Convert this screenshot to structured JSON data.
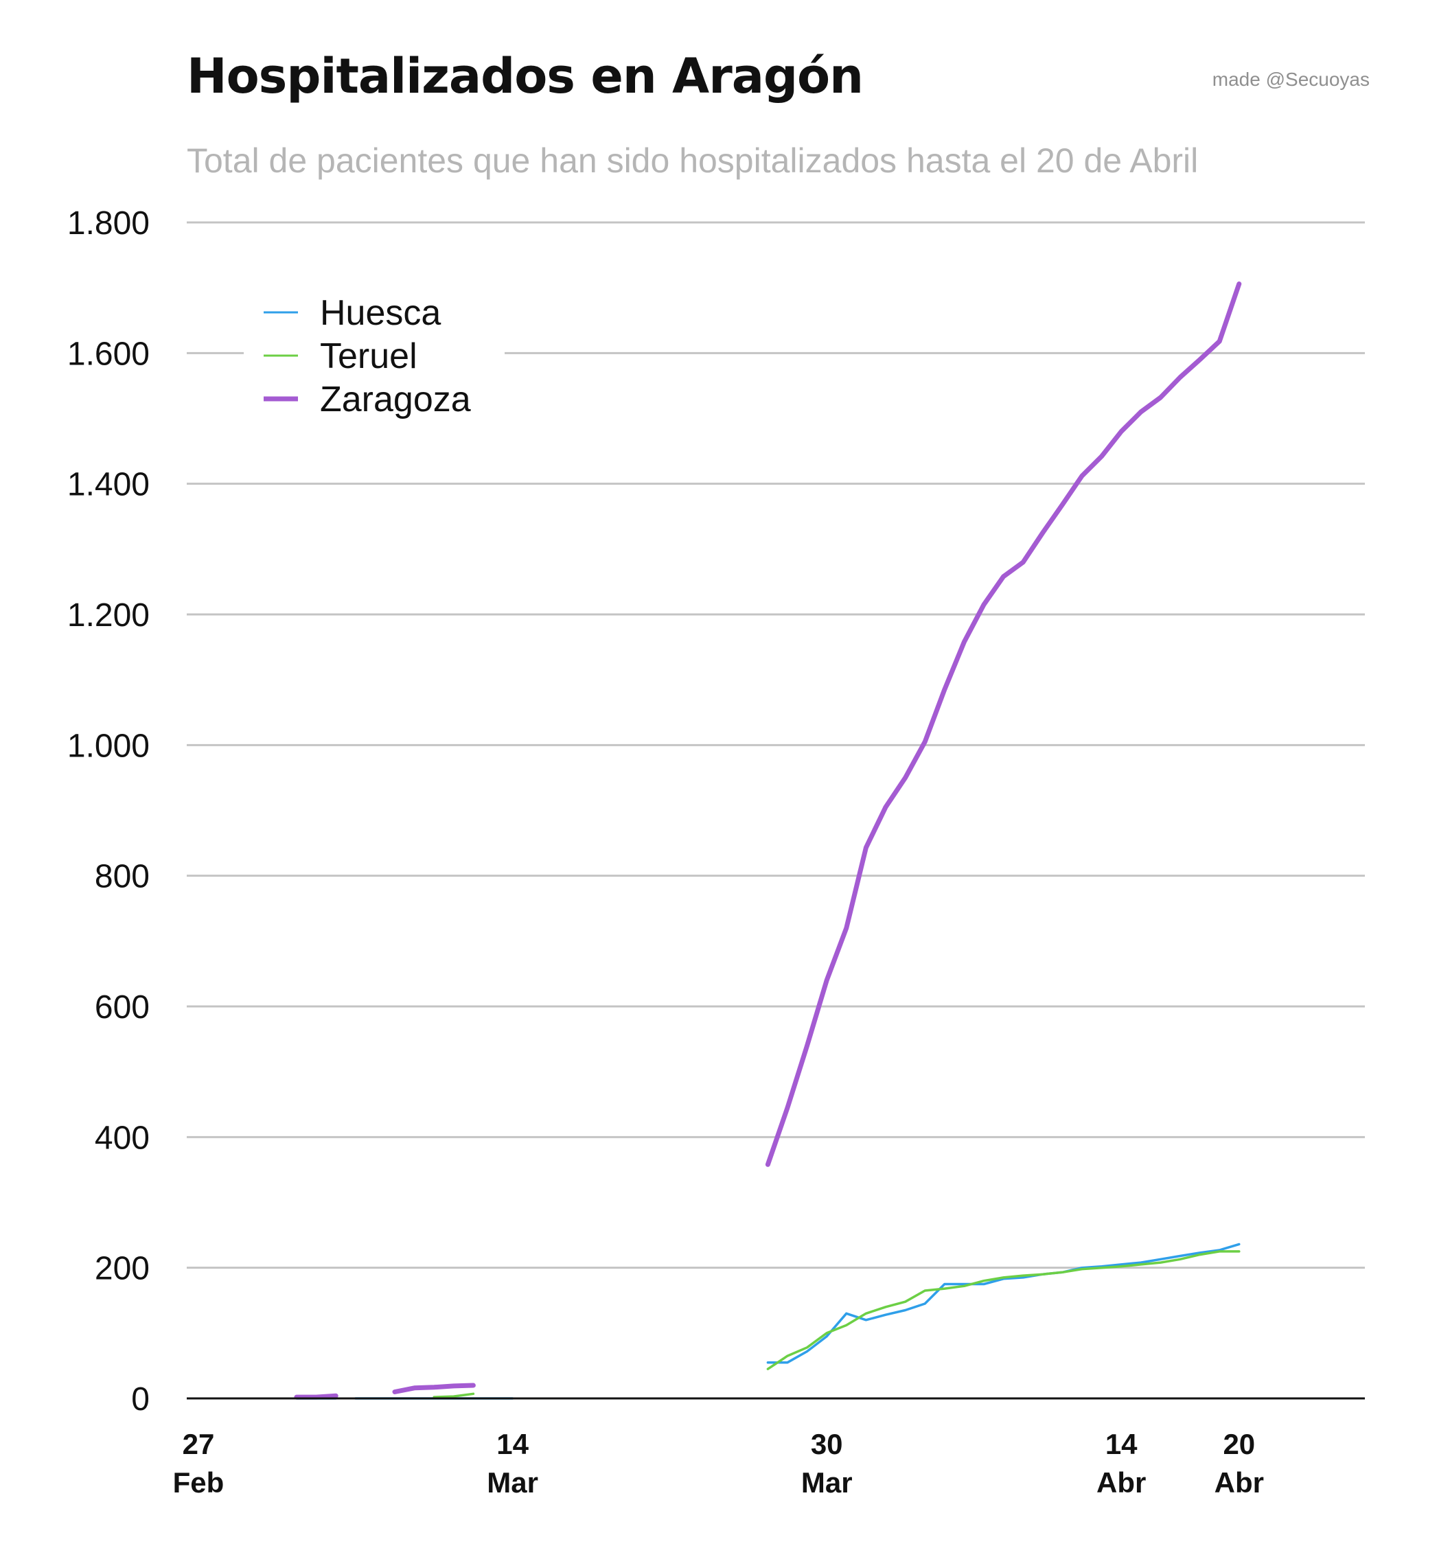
{
  "header": {
    "title": "Hospitalizados en Aragón",
    "credit": "made @Secuoyas",
    "subtitle": "Total de pacientes que han sido hospitalizados hasta el 20 de Abril"
  },
  "chart_data": {
    "type": "line",
    "title": "Hospitalizados en Aragón",
    "subtitle": "Total de pacientes que han sido hospitalizados hasta el 20 de Abril",
    "xlabel": "",
    "ylabel": "",
    "x_unit": "day index (0 = 27 Feb 2020)",
    "xlim": [
      0,
      60
    ],
    "ylim": [
      0,
      1800
    ],
    "grid": true,
    "legend_position": "top-left",
    "y_ticks": [
      {
        "value": 0,
        "label": "0"
      },
      {
        "value": 200,
        "label": "200"
      },
      {
        "value": 400,
        "label": "400"
      },
      {
        "value": 600,
        "label": "600"
      },
      {
        "value": 800,
        "label": "800"
      },
      {
        "value": 1000,
        "label": "1.000"
      },
      {
        "value": 1200,
        "label": "1.200"
      },
      {
        "value": 1400,
        "label": "1.400"
      },
      {
        "value": 1600,
        "label": "1.600"
      },
      {
        "value": 1800,
        "label": "1.800"
      }
    ],
    "x_ticks": [
      {
        "day": 0,
        "line1": "27",
        "line2": "Feb"
      },
      {
        "day": 16,
        "line1": "14",
        "line2": "Mar"
      },
      {
        "day": 32,
        "line1": "30",
        "line2": "Mar"
      },
      {
        "day": 47,
        "line1": "14",
        "line2": "Abr"
      },
      {
        "day": 53,
        "line1": "20",
        "line2": "Abr"
      }
    ],
    "series": [
      {
        "name": "Huesca",
        "color": "#2f9fe9",
        "segments": [
          {
            "x": [
              5,
              6,
              7
            ],
            "y": [
              0,
              0,
              0
            ]
          },
          {
            "x": [
              8,
              9,
              10,
              11,
              12,
              13,
              14,
              15,
              16
            ],
            "y": [
              0,
              0,
              0,
              0,
              0,
              0,
              0,
              0,
              0
            ]
          },
          {
            "x": [
              29,
              30,
              31,
              32,
              33,
              34,
              35,
              36,
              37,
              38,
              39,
              40,
              41,
              42,
              43,
              44,
              45,
              46,
              47,
              48,
              49,
              50,
              51,
              52,
              53
            ],
            "y": [
              55,
              55,
              72,
              95,
              130,
              120,
              128,
              135,
              145,
              175,
              175,
              175,
              183,
              185,
              190,
              193,
              200,
              202,
              205,
              208,
              213,
              218,
              223,
              227,
              236
            ]
          }
        ]
      },
      {
        "name": "Teruel",
        "color": "#6ccf45",
        "segments": [
          {
            "x": [
              12,
              13,
              14
            ],
            "y": [
              2,
              3,
              7
            ]
          },
          {
            "x": [
              29,
              30,
              31,
              32,
              33,
              34,
              35,
              36,
              37,
              38,
              39,
              40,
              41,
              42,
              43,
              44,
              45,
              46,
              47,
              48,
              49,
              50,
              51,
              52,
              53
            ],
            "y": [
              45,
              65,
              78,
              100,
              112,
              130,
              140,
              148,
              165,
              168,
              172,
              180,
              185,
              188,
              190,
              193,
              198,
              200,
              202,
              205,
              208,
              213,
              220,
              225,
              225
            ]
          }
        ]
      },
      {
        "name": "Zaragoza",
        "color": "#a45bd2",
        "segments": [
          {
            "x": [
              5,
              6,
              7
            ],
            "y": [
              2,
              2,
              4
            ]
          },
          {
            "x": [
              10,
              11,
              12,
              13,
              14
            ],
            "y": [
              10,
              16,
              17,
              19,
              20
            ]
          },
          {
            "x": [
              29,
              30,
              31,
              32,
              33,
              34,
              35,
              36,
              37,
              38,
              39,
              40,
              41,
              42,
              43,
              44,
              45,
              46,
              47,
              48,
              49,
              50,
              51,
              52,
              53
            ],
            "y": [
              358,
              445,
              540,
              640,
              720,
              843,
              905,
              950,
              1005,
              1085,
              1158,
              1215,
              1258,
              1280,
              1325,
              1368,
              1412,
              1442,
              1480,
              1510,
              1532,
              1563,
              1590,
              1618,
              1706
            ]
          }
        ]
      }
    ]
  }
}
